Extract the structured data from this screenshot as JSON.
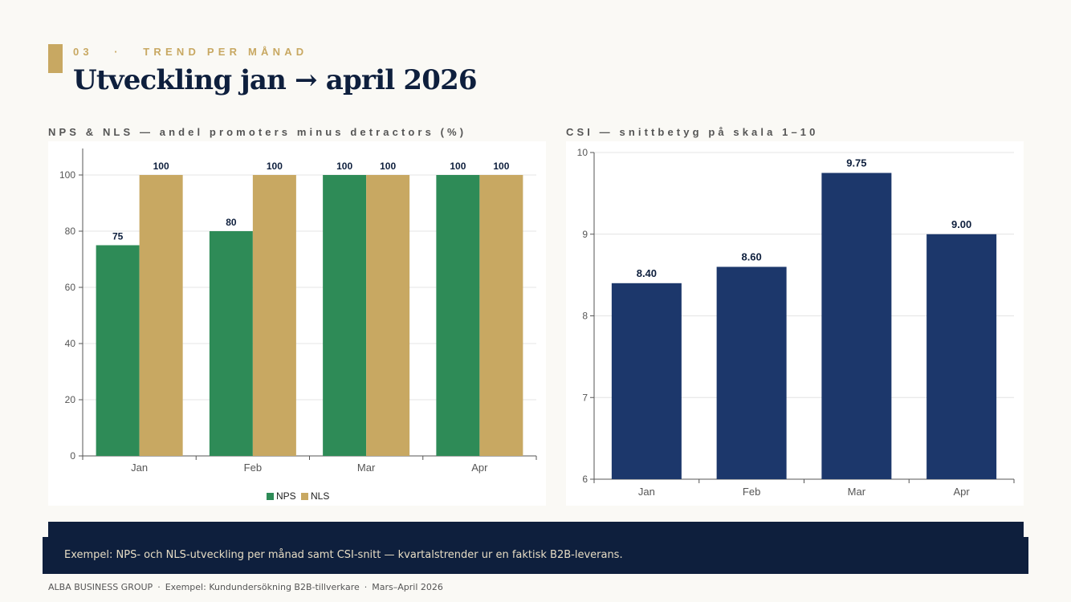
{
  "header": {
    "section_label": "03   ·   TREND PER MÅNAD",
    "title": "Utveckling jan → april 2026"
  },
  "colors": {
    "nps": "#2e8b57",
    "nls": "#c8a862",
    "csi": "#1c376b",
    "accent": "#c8a862",
    "navy": "#0e1f3d"
  },
  "chart_data": [
    {
      "type": "bar",
      "heading": "NPS & NLS — andel promoters minus detractors (%)",
      "categories": [
        "Jan",
        "Feb",
        "Mar",
        "Apr"
      ],
      "series": [
        {
          "name": "NPS",
          "values": [
            75,
            80,
            100,
            100
          ],
          "color": "#2e8b57"
        },
        {
          "name": "NLS",
          "values": [
            100,
            100,
            100,
            100
          ],
          "color": "#c8a862"
        }
      ],
      "ylim": [
        0,
        100
      ],
      "yticks": [
        0,
        20,
        40,
        60,
        80,
        100
      ],
      "grid": true,
      "legend": "bottom"
    },
    {
      "type": "bar",
      "heading": "CSI — snittbetyg på skala 1–10",
      "categories": [
        "Jan",
        "Feb",
        "Mar",
        "Apr"
      ],
      "values": [
        8.4,
        8.6,
        9.75,
        9.0
      ],
      "labels": [
        "8.40",
        "8.60",
        "9.75",
        "9.00"
      ],
      "ylim": [
        6,
        10
      ],
      "yticks": [
        6,
        7,
        8,
        9,
        10
      ],
      "grid": true,
      "color": "#1c376b"
    }
  ],
  "caption": "Exempel: NPS- och NLS-utveckling per månad samt CSI-snitt — kvartalstrender ur en faktisk B2B-leverans.",
  "footer": {
    "company": "ALBA BUSINESS GROUP",
    "project": "Exempel: Kundundersökning B2B-tillverkare",
    "period": "Mars–April 2026"
  }
}
